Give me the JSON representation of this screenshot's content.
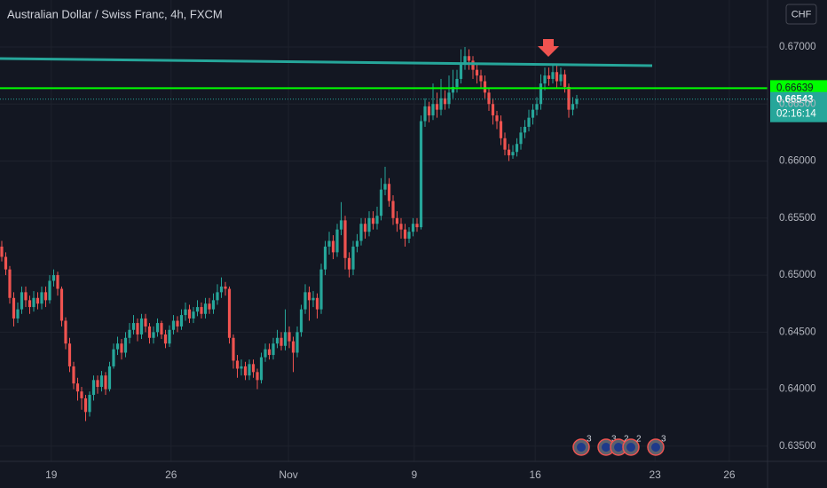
{
  "chart_data": {
    "type": "candlestick",
    "title": "Australian Dollar / Swiss Franc, 4h, FXCM",
    "currency": "CHF",
    "up_color": "#26a69a",
    "down_color": "#ef5350",
    "open": [
      0.6525,
      0.6516,
      0.6505,
      0.648,
      0.6462,
      0.647,
      0.6485,
      0.6478,
      0.6472,
      0.648,
      0.6475,
      0.6485,
      0.6478,
      0.6495,
      0.65,
      0.6488,
      0.646,
      0.644,
      0.642,
      0.6405,
      0.6398,
      0.6392,
      0.638,
      0.6395,
      0.6408,
      0.6402,
      0.6412,
      0.64,
      0.642,
      0.6435,
      0.644,
      0.6432,
      0.6445,
      0.6452,
      0.6458,
      0.6448,
      0.6462,
      0.6455,
      0.6445,
      0.645,
      0.6458,
      0.6448,
      0.644,
      0.6452,
      0.646,
      0.6455,
      0.6465,
      0.647,
      0.6462,
      0.6468,
      0.6472,
      0.6466,
      0.6475,
      0.647,
      0.6478,
      0.6485,
      0.649,
      0.6488,
      0.6445,
      0.6425,
      0.6418,
      0.642,
      0.6412,
      0.6422,
      0.6415,
      0.6408,
      0.6428,
      0.6435,
      0.643,
      0.644,
      0.6445,
      0.6438,
      0.645,
      0.6442,
      0.6432,
      0.645,
      0.647,
      0.6485,
      0.6478,
      0.648,
      0.647,
      0.6505,
      0.6525,
      0.653,
      0.652,
      0.654,
      0.6548,
      0.6515,
      0.6505,
      0.6525,
      0.653,
      0.6545,
      0.6538,
      0.655,
      0.6545,
      0.6552,
      0.6575,
      0.658,
      0.6565,
      0.655,
      0.6545,
      0.654,
      0.6532,
      0.6538,
      0.6545,
      0.6542,
      0.6635,
      0.6648,
      0.664,
      0.665,
      0.6645,
      0.6655,
      0.665,
      0.666,
      0.6665,
      0.6672,
      0.6685,
      0.6692,
      0.6688,
      0.668,
      0.6675,
      0.667,
      0.666,
      0.665,
      0.664,
      0.6635,
      0.662,
      0.661,
      0.6605,
      0.6608,
      0.6615,
      0.6625,
      0.663,
      0.6638,
      0.6645,
      0.665,
      0.6668,
      0.6675,
      0.6672,
      0.6678,
      0.667,
      0.6676,
      0.6665,
      0.6645,
      0.665
    ],
    "high": [
      0.653,
      0.652,
      0.6508,
      0.6485,
      0.6476,
      0.649,
      0.649,
      0.6482,
      0.6486,
      0.6485,
      0.649,
      0.649,
      0.65,
      0.6505,
      0.6503,
      0.649,
      0.6463,
      0.6445,
      0.6424,
      0.641,
      0.6402,
      0.6395,
      0.6398,
      0.6412,
      0.6412,
      0.6416,
      0.6415,
      0.6424,
      0.644,
      0.6446,
      0.6444,
      0.645,
      0.6458,
      0.6465,
      0.6462,
      0.6466,
      0.6466,
      0.6458,
      0.6455,
      0.6462,
      0.646,
      0.6452,
      0.6456,
      0.6465,
      0.6464,
      0.647,
      0.6476,
      0.6474,
      0.6472,
      0.6478,
      0.6476,
      0.648,
      0.648,
      0.6484,
      0.6492,
      0.6498,
      0.6494,
      0.649,
      0.6448,
      0.643,
      0.6426,
      0.6424,
      0.6426,
      0.6426,
      0.6418,
      0.6432,
      0.644,
      0.644,
      0.6445,
      0.6452,
      0.645,
      0.647,
      0.6455,
      0.6446,
      0.6455,
      0.6474,
      0.6492,
      0.649,
      0.6486,
      0.6484,
      0.651,
      0.653,
      0.6538,
      0.6535,
      0.6545,
      0.6564,
      0.6552,
      0.652,
      0.653,
      0.6536,
      0.655,
      0.655,
      0.6556,
      0.6556,
      0.656,
      0.6585,
      0.6595,
      0.6585,
      0.657,
      0.6556,
      0.655,
      0.6545,
      0.6542,
      0.655,
      0.655,
      0.664,
      0.6655,
      0.6652,
      0.6668,
      0.666,
      0.6672,
      0.6662,
      0.6675,
      0.668,
      0.668,
      0.6698,
      0.67,
      0.6698,
      0.6692,
      0.6685,
      0.668,
      0.6675,
      0.6664,
      0.6655,
      0.6644,
      0.664,
      0.6625,
      0.6615,
      0.6614,
      0.662,
      0.663,
      0.6636,
      0.6645,
      0.665,
      0.6656,
      0.6676,
      0.6682,
      0.6682,
      0.6684,
      0.6684,
      0.6682,
      0.668,
      0.6668,
      0.6656,
      0.6658
    ],
    "low": [
      0.6512,
      0.65,
      0.6475,
      0.6455,
      0.6458,
      0.6466,
      0.6472,
      0.6466,
      0.6468,
      0.647,
      0.647,
      0.6472,
      0.6475,
      0.649,
      0.6482,
      0.6455,
      0.6435,
      0.6415,
      0.64,
      0.639,
      0.6382,
      0.6372,
      0.6376,
      0.639,
      0.6396,
      0.6398,
      0.6395,
      0.6398,
      0.6418,
      0.643,
      0.6426,
      0.6428,
      0.644,
      0.6448,
      0.6442,
      0.6444,
      0.645,
      0.644,
      0.644,
      0.6446,
      0.6444,
      0.6436,
      0.6437,
      0.6448,
      0.645,
      0.6452,
      0.646,
      0.6458,
      0.6458,
      0.6464,
      0.6462,
      0.6462,
      0.6466,
      0.6466,
      0.6474,
      0.648,
      0.6482,
      0.644,
      0.6418,
      0.641,
      0.6412,
      0.6408,
      0.6408,
      0.641,
      0.64,
      0.6405,
      0.6424,
      0.6426,
      0.6426,
      0.6436,
      0.6434,
      0.6434,
      0.6436,
      0.6415,
      0.6428,
      0.6446,
      0.6466,
      0.646,
      0.6472,
      0.6462,
      0.6466,
      0.65,
      0.6518,
      0.6514,
      0.6516,
      0.6535,
      0.6505,
      0.6498,
      0.65,
      0.652,
      0.6526,
      0.6532,
      0.6534,
      0.654,
      0.654,
      0.6548,
      0.657,
      0.656,
      0.6544,
      0.6538,
      0.6532,
      0.6525,
      0.6528,
      0.6534,
      0.6538,
      0.654,
      0.663,
      0.6634,
      0.6636,
      0.6638,
      0.664,
      0.6645,
      0.6646,
      0.6655,
      0.666,
      0.6668,
      0.668,
      0.668,
      0.6672,
      0.6668,
      0.6664,
      0.6655,
      0.6644,
      0.6632,
      0.6628,
      0.6614,
      0.6605,
      0.66,
      0.6602,
      0.6604,
      0.661,
      0.662,
      0.6626,
      0.6632,
      0.664,
      0.6645,
      0.6662,
      0.6666,
      0.6668,
      0.6664,
      0.6666,
      0.666,
      0.6638,
      0.664,
      0.6646
    ],
    "close": [
      0.6516,
      0.6505,
      0.648,
      0.6462,
      0.647,
      0.6485,
      0.6478,
      0.6472,
      0.648,
      0.6475,
      0.6485,
      0.6478,
      0.6495,
      0.65,
      0.6488,
      0.646,
      0.644,
      0.642,
      0.6405,
      0.6398,
      0.6392,
      0.638,
      0.6395,
      0.6408,
      0.6402,
      0.6412,
      0.64,
      0.642,
      0.6435,
      0.644,
      0.6432,
      0.6445,
      0.6452,
      0.6458,
      0.6448,
      0.6462,
      0.6455,
      0.6445,
      0.645,
      0.6458,
      0.6448,
      0.644,
      0.6452,
      0.646,
      0.6455,
      0.6465,
      0.647,
      0.6462,
      0.6468,
      0.6472,
      0.6466,
      0.6475,
      0.647,
      0.6478,
      0.6485,
      0.649,
      0.6488,
      0.6445,
      0.6425,
      0.6418,
      0.642,
      0.6412,
      0.6422,
      0.6415,
      0.6408,
      0.6428,
      0.6435,
      0.643,
      0.644,
      0.6445,
      0.6438,
      0.645,
      0.6442,
      0.6432,
      0.645,
      0.647,
      0.6485,
      0.6478,
      0.648,
      0.647,
      0.6505,
      0.6525,
      0.653,
      0.652,
      0.654,
      0.6548,
      0.6515,
      0.6505,
      0.6525,
      0.653,
      0.6545,
      0.6538,
      0.655,
      0.6545,
      0.6552,
      0.6575,
      0.658,
      0.6565,
      0.655,
      0.6545,
      0.654,
      0.6532,
      0.6538,
      0.6545,
      0.6542,
      0.6635,
      0.6648,
      0.664,
      0.665,
      0.6645,
      0.6655,
      0.665,
      0.666,
      0.6665,
      0.6672,
      0.6685,
      0.6692,
      0.6688,
      0.668,
      0.6675,
      0.667,
      0.666,
      0.665,
      0.664,
      0.6635,
      0.662,
      0.661,
      0.6605,
      0.6608,
      0.6615,
      0.6625,
      0.663,
      0.6638,
      0.6645,
      0.665,
      0.6668,
      0.6675,
      0.6672,
      0.6678,
      0.667,
      0.6676,
      0.6665,
      0.6645,
      0.665,
      0.66543
    ],
    "xlim": [
      -0.444,
      191.78
    ],
    "xticks": [
      {
        "value": 12.4,
        "label": "19"
      },
      {
        "value": 42.4,
        "label": "26"
      },
      {
        "value": 71.8,
        "label": "Nov"
      },
      {
        "value": 103.3,
        "label": "9"
      },
      {
        "value": 133.6,
        "label": "16"
      },
      {
        "value": 163.6,
        "label": "23"
      },
      {
        "value": 182.2,
        "label": "26"
      }
    ],
    "ylim": [
      0.63367,
      0.67412
    ],
    "yticks": [
      {
        "value": 0.635,
        "label": "0.63500"
      },
      {
        "value": 0.64,
        "label": "0.64000"
      },
      {
        "value": 0.645,
        "label": "0.64500"
      },
      {
        "value": 0.65,
        "label": "0.65000"
      },
      {
        "value": 0.655,
        "label": "0.65500"
      },
      {
        "value": 0.66,
        "label": "0.66000"
      },
      {
        "value": 0.665,
        "label": "0.66500"
      },
      {
        "value": 0.67,
        "label": "0.67000"
      }
    ],
    "grid": true,
    "level": {
      "value": 0.66639,
      "color": "#00ff00"
    },
    "countdown": "02:16:14",
    "events": [
      "3",
      "3",
      "2",
      "2",
      "3"
    ]
  }
}
